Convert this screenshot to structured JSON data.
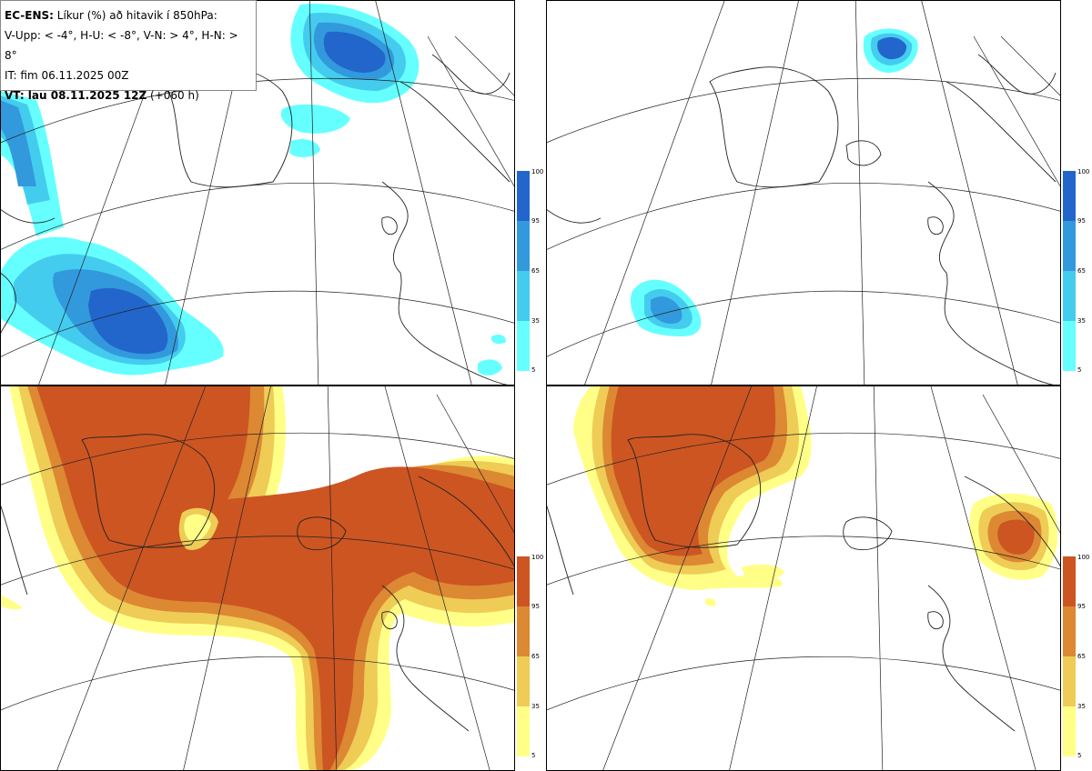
{
  "title_box": {
    "line1_bold": "EC-ENS:",
    "line1_rest": " Líkur (%) að hitavik í 850hPa:",
    "line2": "V-Upp: < -4°, H-U: < -8°, V-N: > 4°, H-N: > 8°",
    "line3": "IT: fim 06.11.2025 00Z",
    "line4_bold": "VT: lau 08.11.2025 12Z",
    "line4_rest": " (+060 h)"
  },
  "colorbar_ticks": [
    "100",
    "95",
    "65",
    "35",
    "5"
  ],
  "colors": {
    "cold": [
      "#66ffff",
      "#44ccee",
      "#3399dd",
      "#2266cc"
    ],
    "warm": [
      "#ffff88",
      "#eecc55",
      "#dd8833",
      "#cc5522"
    ],
    "line": "#222222"
  }
}
